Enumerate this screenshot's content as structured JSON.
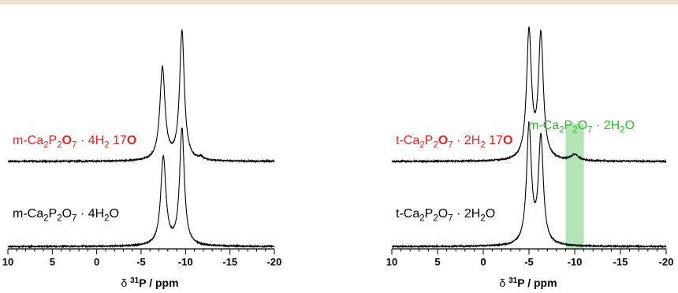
{
  "figure": {
    "rule_color": "#e9e2cf"
  },
  "chart_data": [
    {
      "type": "line",
      "xlabel": "δ 31P / ppm",
      "xlim": [
        10,
        -20
      ],
      "xticks": [
        10,
        5,
        0,
        -5,
        -10,
        -15,
        -20
      ],
      "series": [
        {
          "name": "m-Ca2P2O7 · 4H2 17O",
          "color": "#e8231f",
          "trace_color": "#000000",
          "peaks": [
            {
              "x": -7.4,
              "height": 0.69,
              "width": 0.35
            },
            {
              "x": -9.6,
              "height": 0.96,
              "width": 0.32
            },
            {
              "x": -11.7,
              "height": 0.02,
              "width": 0.3
            }
          ]
        },
        {
          "name": "m-Ca2P2O7 · 4H2O",
          "color": "#000000",
          "trace_color": "#000000",
          "peaks": [
            {
              "x": -7.5,
              "height": 0.66,
              "width": 0.35
            },
            {
              "x": -9.6,
              "height": 0.87,
              "width": 0.32
            }
          ]
        }
      ]
    },
    {
      "type": "line",
      "xlabel": "δ 31P / ppm",
      "xlim": [
        10,
        -20
      ],
      "xticks": [
        10,
        5,
        0,
        -5,
        -10,
        -15,
        -20
      ],
      "annotation": {
        "text": "m-Ca2P2O7 · 2H2O",
        "color": "#2eb82e",
        "band": [
          -9.0,
          -11.0
        ],
        "band_color": "#9bdc9b"
      },
      "series": [
        {
          "name": "t-Ca2P2O7 · 2H2 17O",
          "color": "#e8231f",
          "trace_color": "#000000",
          "peaks": [
            {
              "x": -5.0,
              "height": 0.98,
              "width": 0.32
            },
            {
              "x": -6.3,
              "height": 0.95,
              "width": 0.32
            },
            {
              "x": -10.0,
              "height": 0.045,
              "width": 0.5
            }
          ]
        },
        {
          "name": "t-Ca2P2O7 · 2H2O",
          "color": "#000000",
          "trace_color": "#000000",
          "peaks": [
            {
              "x": -5.0,
              "height": 0.91,
              "width": 0.32
            },
            {
              "x": -6.3,
              "height": 0.82,
              "width": 0.32
            }
          ]
        }
      ]
    }
  ]
}
